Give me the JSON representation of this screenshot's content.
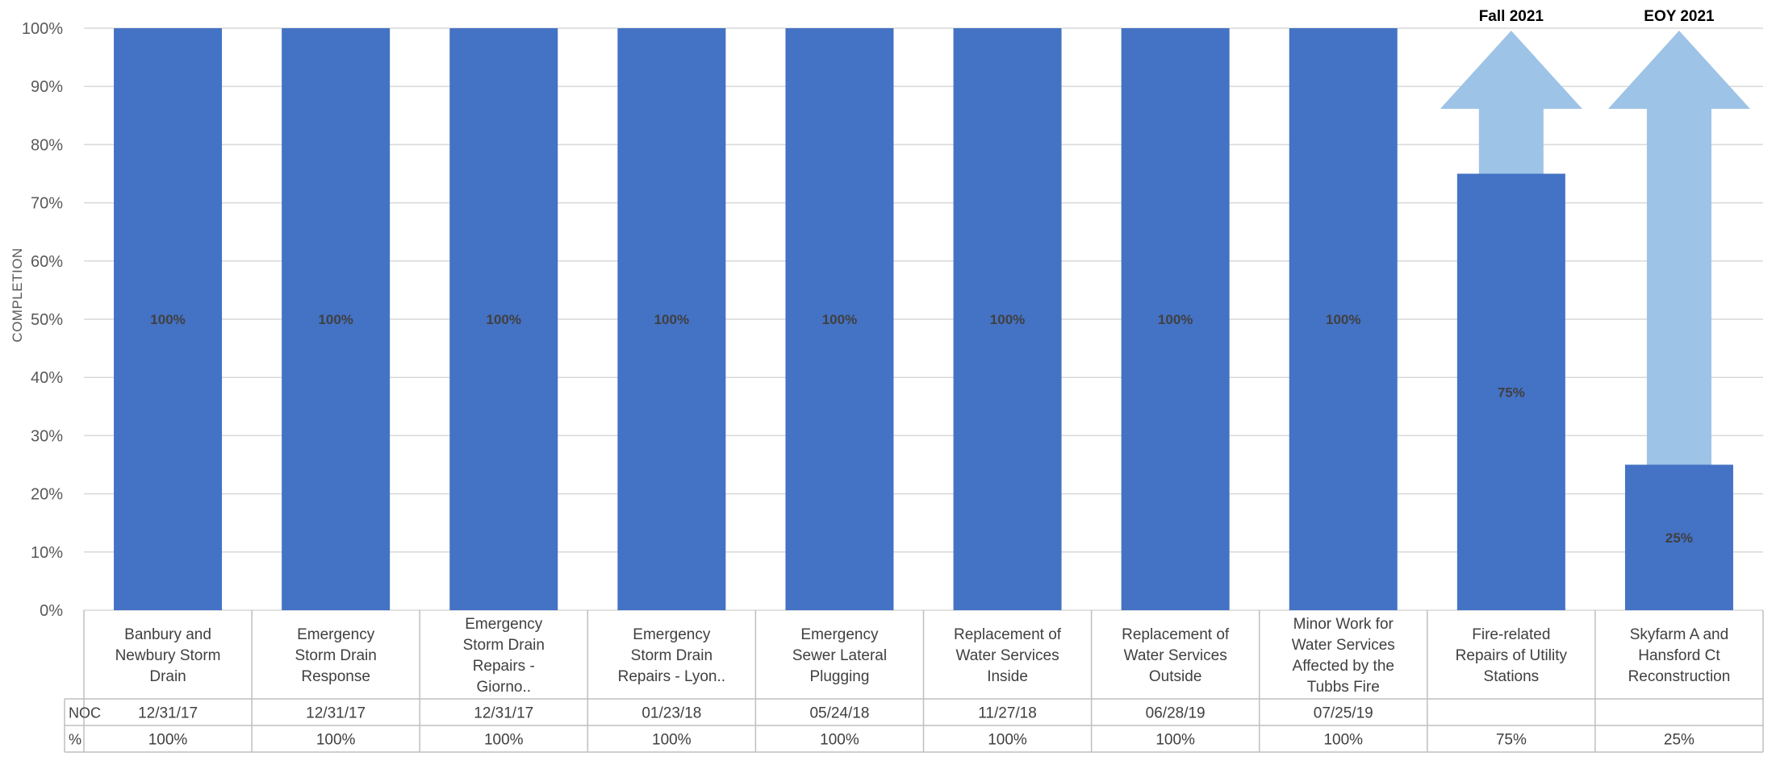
{
  "chart_data": {
    "type": "bar",
    "ylabel": "COMPLETION",
    "ylim": [
      0,
      100
    ],
    "yticks": [
      "0%",
      "10%",
      "20%",
      "30%",
      "40%",
      "50%",
      "60%",
      "70%",
      "80%",
      "90%",
      "100%"
    ],
    "grid": true,
    "bar_color": "#4472c4",
    "arrow_color": "#9dc3e6",
    "categories": [
      [
        "Banbury and",
        "Newbury Storm",
        "Drain"
      ],
      [
        "Emergency",
        "Storm Drain",
        "Response"
      ],
      [
        "Emergency",
        "Storm Drain",
        "Repairs -",
        "Giorno.."
      ],
      [
        "Emergency",
        "Storm Drain",
        "Repairs - Lyon.."
      ],
      [
        "Emergency",
        "Sewer Lateral",
        "Plugging"
      ],
      [
        "Replacement of",
        "Water Services",
        "Inside"
      ],
      [
        "Replacement of",
        "Water Services",
        "Outside"
      ],
      [
        "Minor Work for",
        "Water Services",
        "Affected by the",
        "Tubbs Fire"
      ],
      [
        "Fire-related",
        "Repairs of Utility",
        "Stations"
      ],
      [
        "Skyfarm A and",
        "Hansford Ct",
        "Reconstruction"
      ]
    ],
    "values": [
      100,
      100,
      100,
      100,
      100,
      100,
      100,
      100,
      75,
      25
    ],
    "data_labels": [
      "100%",
      "100%",
      "100%",
      "100%",
      "100%",
      "100%",
      "100%",
      "100%",
      "75%",
      "25%"
    ],
    "arrows": [
      {
        "category_index": 8,
        "from": 75,
        "to": 100,
        "label": "Fall 2021"
      },
      {
        "category_index": 9,
        "from": 25,
        "to": 100,
        "label": "EOY 2021"
      }
    ],
    "table": {
      "rows": [
        {
          "header": "NOC",
          "values": [
            "12/31/17",
            "12/31/17",
            "12/31/17",
            "01/23/18",
            "05/24/18",
            "11/27/18",
            "06/28/19",
            "07/25/19",
            "",
            ""
          ]
        },
        {
          "header": "%",
          "values": [
            "100%",
            "100%",
            "100%",
            "100%",
            "100%",
            "100%",
            "100%",
            "100%",
            "75%",
            "25%"
          ]
        }
      ]
    }
  }
}
